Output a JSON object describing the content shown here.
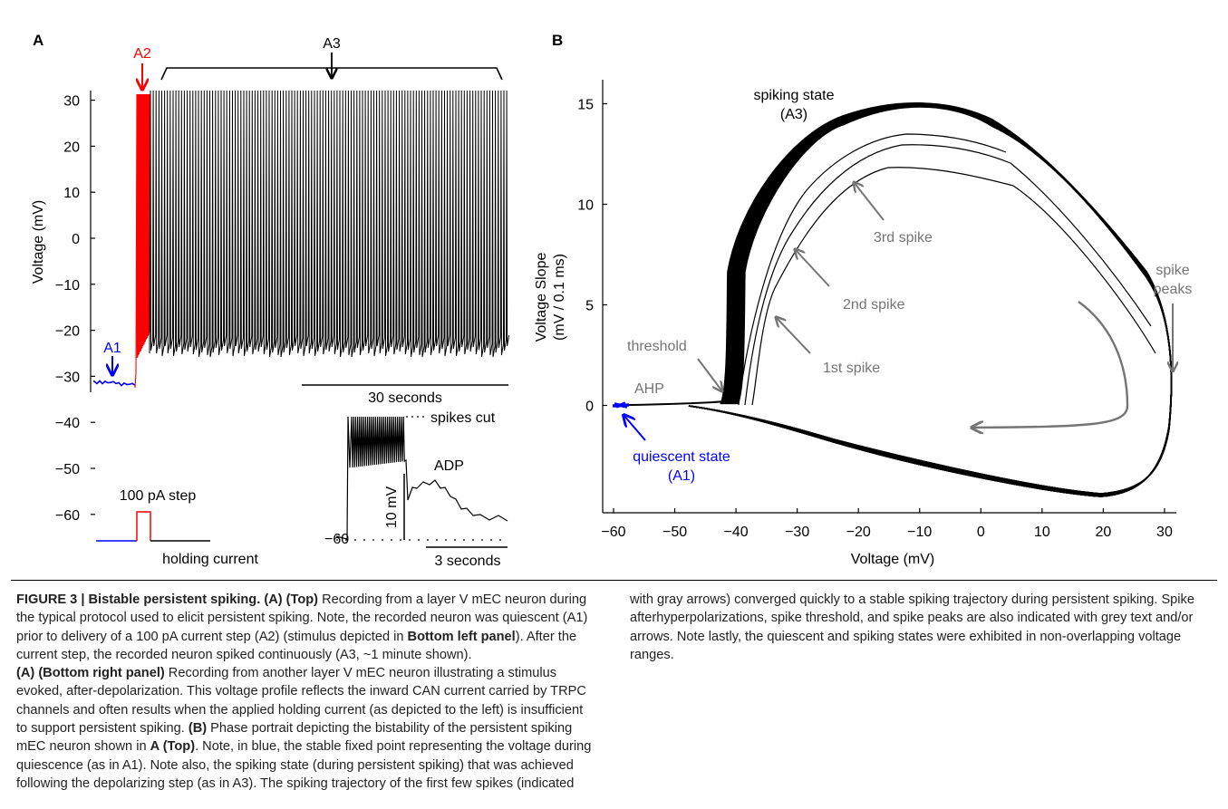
{
  "figure": {
    "panel_a_label": "A",
    "panel_b_label": "B",
    "panel_a": {
      "ylabel": "Voltage (mV)",
      "yticks": [
        "30",
        "20",
        "10",
        "0",
        "−10",
        "−20",
        "−30",
        "−40",
        "−50",
        "−60"
      ],
      "markers": {
        "a1": "A1",
        "a2": "A2",
        "a3": "A3"
      },
      "scalebar_label": "30 seconds",
      "stim_label": "100 pA step",
      "holding_label": "holding current",
      "inset": {
        "level_label": "−60",
        "spikes_cut_label": "spikes cut",
        "adp_label": "ADP",
        "vertical_scale_label": "10 mV",
        "time_scale_label": "3 seconds"
      }
    },
    "panel_b": {
      "xlabel": "Voltage (mV)",
      "ylabel_line1": "Voltage Slope",
      "ylabel_line2": "(mV / 0.1 ms)",
      "xticks": [
        "−60",
        "−50",
        "−40",
        "−30",
        "−20",
        "−10",
        "0",
        "10",
        "20",
        "30"
      ],
      "yticks": [
        "0",
        "5",
        "10",
        "15"
      ],
      "annotations": {
        "spiking_state_1": "spiking state",
        "spiking_state_2": "(A3)",
        "third_spike": "3rd spike",
        "second_spike": "2nd spike",
        "first_spike": "1st spike",
        "threshold": "threshold",
        "ahp": "AHP",
        "spike_peaks_1": "spike",
        "spike_peaks_2": "peaks",
        "quiescent_1": "quiescent state",
        "quiescent_2": "(A1)"
      }
    }
  },
  "colors": {
    "quiescent": "#0000ff",
    "stimulus": "#ff0000",
    "trace": "#000000",
    "annotation": "#757575"
  },
  "caption": {
    "fig_num": "FIGURE 3 | ",
    "title": "Bistable persistent spiking.",
    "s1_ref": "(A) (Top)",
    "s1": " Recording from a layer V mEC neuron during the typical protocol used to elicit persistent spiking. Note, the recorded neuron was quiescent (A1) prior to delivery of a 100 pA current step (A2) (stimulus depicted in ",
    "s1_ref2": "Bottom left panel",
    "s1_end": "). After the current step, the recorded neuron spiked continuously (A3, ~1 minute shown).",
    "s2_ref": "(A) (Bottom right panel)",
    "s2": " Recording from another layer V mEC neuron illustrating a stimulus evoked, after-depolarization. This voltage profile reflects the inward CAN current carried by TRPC channels and often results when the applied holding current (as depicted to the left) is insufficient to support persistent spiking. ",
    "s3_ref": "(B)",
    "s3": " Phase portrait depicting the bistability of the persistent spiking mEC neuron shown in ",
    "s3_ref2": "A (Top)",
    "s3_end": ". Note, in blue, the stable fixed point representing the voltage during quiescence (as in A1). Note also, the spiking state (during persistent spiking) that was achieved following the depolarizing step (as in A3). The spiking trajectory of the first few spikes (indicated with gray arrows) converged quickly to a stable spiking trajectory during persistent spiking. Spike afterhyperpolarizations, spike threshold, and spike peaks are also indicated with grey text and/or arrows. Note lastly, the quiescent and spiking states were exhibited in non-overlapping voltage ranges."
  }
}
